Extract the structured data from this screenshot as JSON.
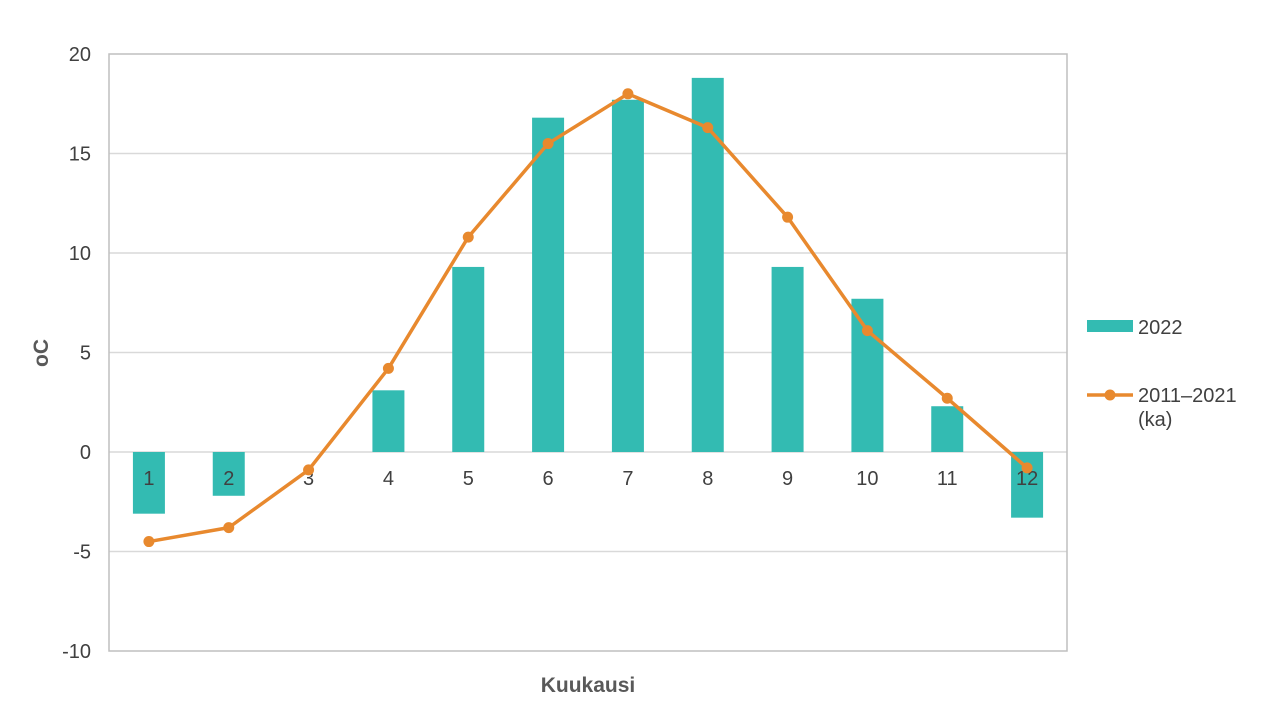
{
  "chart_data": {
    "type": "bar",
    "categories": [
      "1",
      "2",
      "3",
      "4",
      "5",
      "6",
      "7",
      "8",
      "9",
      "10",
      "11",
      "12"
    ],
    "series": [
      {
        "name": "2022",
        "type": "bar",
        "color": "#33BBB2",
        "values": [
          -3.1,
          -2.2,
          0.0,
          3.1,
          9.3,
          16.8,
          17.7,
          18.8,
          9.3,
          7.7,
          2.3,
          -3.3
        ]
      },
      {
        "name_lines": [
          "2011–2021",
          "(ka)"
        ],
        "type": "line",
        "color": "#E8892E",
        "values": [
          -4.5,
          -3.8,
          -0.9,
          4.2,
          10.8,
          15.5,
          18.0,
          16.3,
          11.8,
          6.1,
          2.7,
          -0.8
        ]
      }
    ],
    "xlabel": "Kuukausi",
    "ylabel": "oC",
    "ylim": [
      -10,
      20
    ],
    "yticks": [
      "-10",
      "-5",
      "0",
      "5",
      "10",
      "15",
      "20"
    ],
    "grid": true,
    "legend_position": "right"
  }
}
